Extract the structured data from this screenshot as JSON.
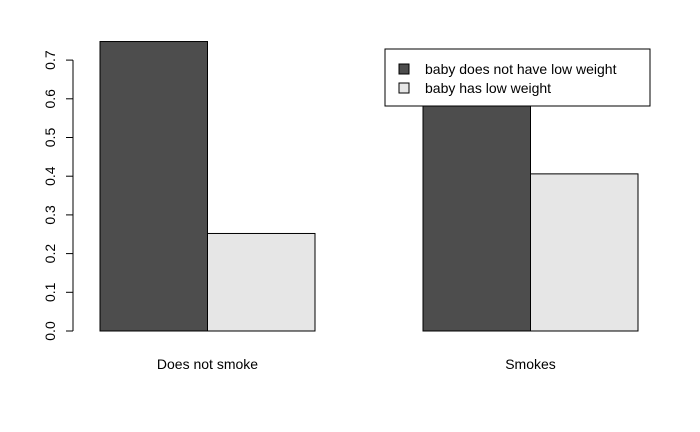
{
  "chart_data": {
    "type": "bar",
    "title": "",
    "xlabel": "",
    "ylabel": "",
    "categories": [
      "Does not smoke",
      "Smokes"
    ],
    "series": [
      {
        "name": "baby does not have low weight",
        "values": [
          0.748,
          0.594
        ],
        "color": "#4d4d4d"
      },
      {
        "name": "baby has low weight",
        "values": [
          0.252,
          0.406
        ],
        "color": "#e6e6e6"
      }
    ],
    "ylim": [
      0,
      0.75
    ],
    "yticks": [
      0.0,
      0.1,
      0.2,
      0.3,
      0.4,
      0.5,
      0.6,
      0.7
    ],
    "ytick_labels": [
      "0.0",
      "0.1",
      "0.2",
      "0.3",
      "0.4",
      "0.5",
      "0.6",
      "0.7"
    ],
    "grouping": "beside",
    "legend_position": "top-right",
    "grid": false
  }
}
